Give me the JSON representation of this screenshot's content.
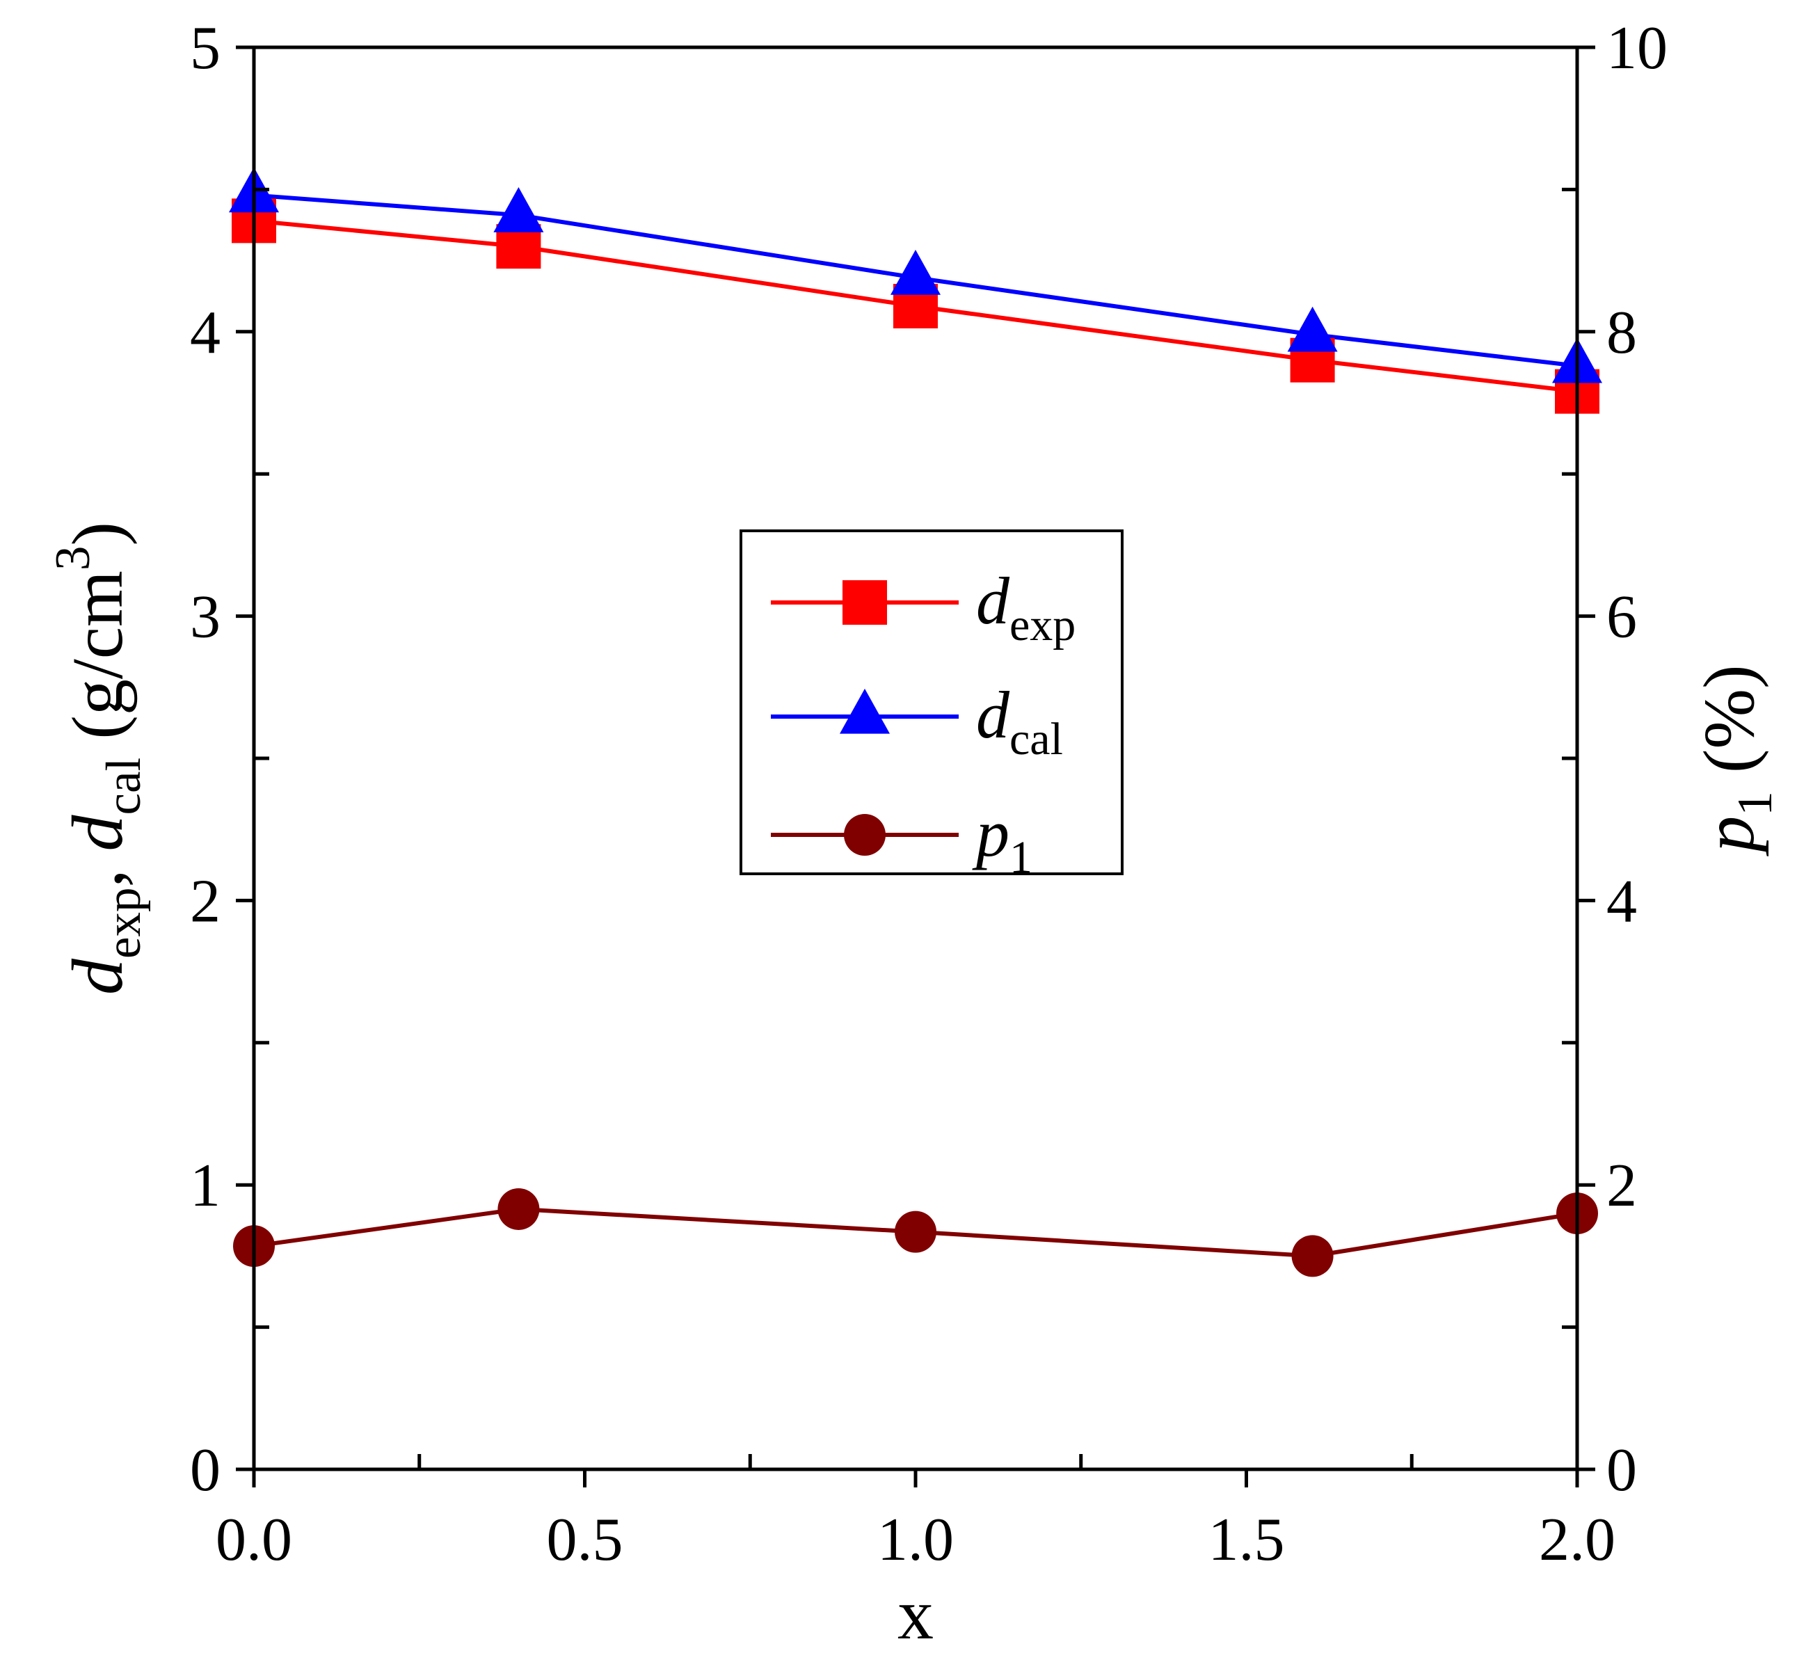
{
  "chart_data": {
    "type": "line",
    "x": [
      0.0,
      0.4,
      1.0,
      1.6,
      2.0
    ],
    "xlabel": "x",
    "xlim": [
      0.0,
      2.0
    ],
    "x_ticks": [
      "0.0",
      "0.5",
      "1.0",
      "1.5",
      "2.0"
    ],
    "x_tick_values": [
      0.0,
      0.5,
      1.0,
      1.5,
      2.0
    ],
    "ylabel_left": {
      "parts": [
        {
          "text": "d",
          "style": "italic"
        },
        {
          "text": "exp",
          "style": "sub"
        },
        {
          "text": ", ",
          "style": "normal"
        },
        {
          "text": "d",
          "style": "italic"
        },
        {
          "text": "cal",
          "style": "sub"
        },
        {
          "text": "  (g/cm",
          "style": "normal"
        },
        {
          "text": "3",
          "style": "sup"
        },
        {
          "text": ")",
          "style": "normal"
        }
      ]
    },
    "ylim_left": [
      0,
      5
    ],
    "y_left_ticks": [
      "0",
      "1",
      "2",
      "3",
      "4",
      "5"
    ],
    "ylabel_right": {
      "parts": [
        {
          "text": "p",
          "style": "italic"
        },
        {
          "text": "1",
          "style": "sub"
        },
        {
          "text": "  (%)",
          "style": "normal"
        }
      ]
    },
    "ylim_right": [
      0,
      10
    ],
    "y_right_ticks": [
      "0",
      "2",
      "4",
      "6",
      "8",
      "10"
    ],
    "grid": false,
    "legend_position": "center",
    "series": [
      {
        "name": "d_exp",
        "label_main": "d",
        "label_sub": "exp",
        "axis": "left",
        "marker": "square",
        "color": "#ff0000",
        "values": [
          4.39,
          4.3,
          4.09,
          3.9,
          3.79
        ]
      },
      {
        "name": "d_cal",
        "label_main": "d",
        "label_sub": "cal",
        "axis": "left",
        "marker": "triangle",
        "color": "#0000ff",
        "values": [
          4.48,
          4.41,
          4.19,
          3.99,
          3.88
        ]
      },
      {
        "name": "p_1",
        "label_main": "p",
        "label_sub": "1",
        "axis": "right",
        "marker": "circle",
        "color": "#800000",
        "values": [
          1.57,
          1.83,
          1.67,
          1.5,
          1.8
        ]
      }
    ]
  }
}
